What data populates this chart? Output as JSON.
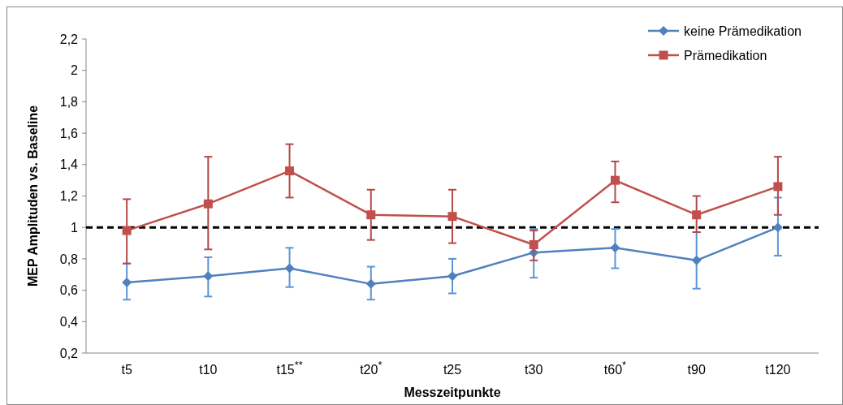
{
  "chart_data": {
    "type": "line",
    "xlabel": "Messzeitpunkte",
    "ylabel": "MEP Amplituden vs. Baseline",
    "categories": [
      "t5",
      "t10",
      "t15$^{**}$",
      "t20$^{*}$",
      "t25",
      "t30",
      "t60$^{*}$",
      "t90",
      "t120"
    ],
    "ylim": [
      0.2,
      2.2
    ],
    "yticks": [
      {
        "value": 0.2,
        "label": "0,2"
      },
      {
        "value": 0.4,
        "label": "0,4"
      },
      {
        "value": 0.6,
        "label": "0,6"
      },
      {
        "value": 0.8,
        "label": "0,8"
      },
      {
        "value": 1,
        "label": "1"
      },
      {
        "value": 1.2,
        "label": "1,2"
      },
      {
        "value": 1.4,
        "label": "1,4"
      },
      {
        "value": 1.6,
        "label": "1,6"
      },
      {
        "value": 1.8,
        "label": "1,8"
      },
      {
        "value": 2,
        "label": "2"
      },
      {
        "value": 2.2,
        "label": "2,2"
      }
    ],
    "series": [
      {
        "name": "keine Prämedikation",
        "color": "#4f81bd",
        "marker": "diamond",
        "values": [
          0.65,
          0.69,
          0.74,
          0.64,
          0.69,
          0.84,
          0.87,
          0.79,
          1.0
        ],
        "errors": [
          [
            0.54,
            0.77
          ],
          [
            0.56,
            0.81
          ],
          [
            0.62,
            0.87
          ],
          [
            0.54,
            0.75
          ],
          [
            0.58,
            0.8
          ],
          [
            0.68,
            0.99
          ],
          [
            0.74,
            0.99
          ],
          [
            0.61,
            0.97
          ],
          [
            0.82,
            1.19
          ]
        ]
      },
      {
        "name": "Prämedikation",
        "color": "#c0504d",
        "marker": "square",
        "values": [
          0.98,
          1.15,
          1.36,
          1.08,
          1.07,
          0.89,
          1.3,
          1.08,
          1.26
        ],
        "errors": [
          [
            0.77,
            1.18
          ],
          [
            0.86,
            1.45
          ],
          [
            1.19,
            1.53
          ],
          [
            0.92,
            1.24
          ],
          [
            0.9,
            1.24
          ],
          [
            0.79,
            0.98
          ],
          [
            1.16,
            1.42
          ],
          [
            0.97,
            1.2
          ],
          [
            1.08,
            1.45
          ]
        ]
      }
    ],
    "ref_lines": [
      {
        "axis": "y",
        "value": 1,
        "color": "#000000",
        "line_style": "dashed"
      }
    ],
    "legend": "top right",
    "grid": false
  }
}
